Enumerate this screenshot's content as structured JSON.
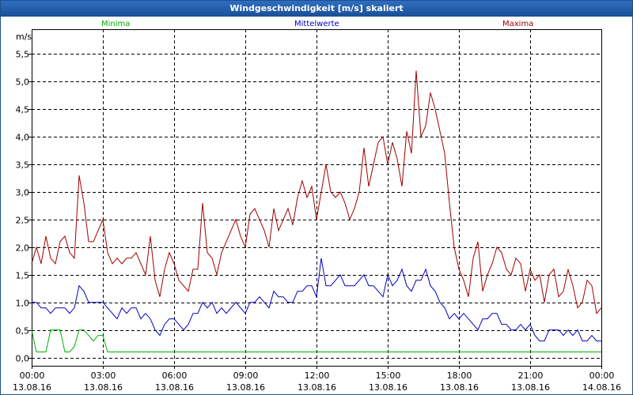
{
  "window": {
    "title": "Windgeschwindigkeit [m/s] skaliert"
  },
  "colors": {
    "min": "#00b000",
    "avg": "#0000c0",
    "max": "#a00000",
    "titlebar": "#2a66b4"
  },
  "chart_data": {
    "type": "line",
    "title": "Windgeschwindigkeit [m/s] skaliert",
    "xlabel": "",
    "ylabel": "m/s",
    "ylim": [
      -0.15,
      5.95
    ],
    "yticks": [
      0.0,
      0.5,
      1.0,
      1.5,
      2.0,
      2.5,
      3.0,
      3.5,
      4.0,
      4.5,
      5.0,
      5.5
    ],
    "ytick_labels": [
      "0,0",
      "0,5",
      "1,0",
      "1,5",
      "2,0",
      "2,5",
      "3,0",
      "3,5",
      "4,0",
      "4,5",
      "5,0",
      "5,5"
    ],
    "xlim": [
      0,
      24
    ],
    "xticks": [
      0,
      3,
      6,
      9,
      12,
      15,
      18,
      21,
      24
    ],
    "xtick_time_labels": [
      "00:00",
      "03:00",
      "06:00",
      "09:00",
      "12:00",
      "15:00",
      "18:00",
      "21:00",
      "00:00"
    ],
    "xtick_date_labels": [
      "13.08.16",
      "13.08.16",
      "13.08.16",
      "13.08.16",
      "13.08.16",
      "13.08.16",
      "13.08.16",
      "13.08.16",
      "14.08.16"
    ],
    "grid": true,
    "legend": "top",
    "x_hours": [
      0,
      0.2,
      0.4,
      0.6,
      0.8,
      1.0,
      1.2,
      1.4,
      1.6,
      1.8,
      2.0,
      2.2,
      2.4,
      2.6,
      2.8,
      3.0,
      3.2,
      3.4,
      3.6,
      3.8,
      4.0,
      4.2,
      4.4,
      4.6,
      4.8,
      5.0,
      5.2,
      5.4,
      5.6,
      5.8,
      6.0,
      6.2,
      6.4,
      6.6,
      6.8,
      7.0,
      7.2,
      7.4,
      7.6,
      7.8,
      8.0,
      8.2,
      8.4,
      8.6,
      8.8,
      9.0,
      9.2,
      9.4,
      9.6,
      9.8,
      10.0,
      10.2,
      10.4,
      10.6,
      10.8,
      11.0,
      11.2,
      11.4,
      11.6,
      11.8,
      12.0,
      12.2,
      12.4,
      12.6,
      12.8,
      13.0,
      13.2,
      13.4,
      13.6,
      13.8,
      14.0,
      14.2,
      14.4,
      14.6,
      14.8,
      15.0,
      15.2,
      15.4,
      15.6,
      15.8,
      16.0,
      16.2,
      16.4,
      16.6,
      16.8,
      17.0,
      17.2,
      17.4,
      17.6,
      17.8,
      18.0,
      18.2,
      18.4,
      18.6,
      18.8,
      19.0,
      19.2,
      19.4,
      19.6,
      19.8,
      20.0,
      20.2,
      20.4,
      20.6,
      20.8,
      21.0,
      21.2,
      21.4,
      21.6,
      21.8,
      22.0,
      22.2,
      22.4,
      22.6,
      22.8,
      23.0,
      23.2,
      23.4,
      23.6,
      23.8,
      24.0
    ],
    "series": [
      {
        "name": "Maxima",
        "color": "#a00000",
        "values": [
          1.7,
          2.0,
          1.7,
          2.2,
          1.8,
          1.7,
          2.1,
          2.2,
          1.9,
          1.8,
          3.3,
          2.8,
          2.1,
          2.1,
          2.3,
          2.5,
          1.9,
          1.7,
          1.8,
          1.7,
          1.8,
          1.8,
          1.9,
          1.7,
          1.5,
          2.2,
          1.4,
          1.1,
          1.6,
          1.9,
          1.7,
          1.4,
          1.3,
          1.2,
          1.6,
          1.6,
          2.8,
          1.9,
          1.8,
          1.5,
          1.9,
          2.1,
          2.3,
          2.5,
          2.2,
          2.0,
          2.6,
          2.7,
          2.5,
          2.3,
          2.0,
          2.7,
          2.3,
          2.5,
          2.7,
          2.4,
          2.9,
          3.2,
          2.9,
          3.1,
          2.5,
          3.0,
          3.5,
          3.0,
          2.9,
          3.0,
          2.8,
          2.5,
          2.7,
          3.0,
          3.8,
          3.1,
          3.5,
          3.9,
          4.0,
          3.5,
          3.9,
          3.6,
          3.1,
          4.1,
          3.7,
          5.2,
          4.0,
          4.2,
          4.8,
          4.5,
          4.1,
          3.7,
          2.8,
          2.0,
          1.6,
          1.4,
          1.1,
          1.8,
          2.1,
          1.2,
          1.5,
          1.7,
          2.0,
          1.9,
          1.6,
          1.5,
          1.8,
          1.7,
          1.2,
          1.6,
          1.4,
          1.5,
          1.0,
          1.5,
          1.6,
          1.1,
          1.2,
          1.6,
          1.3,
          0.9,
          1.0,
          1.4,
          1.3,
          0.8,
          0.9
        ]
      },
      {
        "name": "Mittelwerte",
        "color": "#0000c0",
        "values": [
          1.0,
          1.0,
          0.9,
          0.9,
          0.8,
          0.9,
          0.9,
          0.9,
          0.8,
          0.9,
          1.3,
          1.2,
          1.0,
          1.0,
          1.0,
          1.0,
          0.9,
          0.8,
          0.7,
          0.9,
          0.8,
          0.9,
          0.9,
          0.7,
          0.8,
          0.7,
          0.5,
          0.4,
          0.6,
          0.7,
          0.7,
          0.6,
          0.5,
          0.6,
          0.8,
          0.8,
          1.0,
          0.9,
          1.0,
          0.8,
          0.9,
          0.8,
          0.9,
          1.0,
          0.9,
          0.8,
          1.0,
          1.0,
          1.1,
          1.0,
          0.9,
          1.2,
          1.1,
          1.1,
          1.0,
          1.0,
          1.2,
          1.2,
          1.3,
          1.3,
          1.1,
          1.8,
          1.3,
          1.3,
          1.4,
          1.5,
          1.3,
          1.3,
          1.3,
          1.4,
          1.5,
          1.3,
          1.3,
          1.2,
          1.1,
          1.5,
          1.3,
          1.4,
          1.6,
          1.3,
          1.2,
          1.4,
          1.4,
          1.6,
          1.3,
          1.2,
          1.0,
          0.9,
          0.7,
          0.8,
          0.7,
          0.8,
          0.7,
          0.6,
          0.5,
          0.7,
          0.7,
          0.8,
          0.8,
          0.6,
          0.6,
          0.5,
          0.5,
          0.6,
          0.5,
          0.6,
          0.4,
          0.3,
          0.3,
          0.5,
          0.5,
          0.5,
          0.4,
          0.5,
          0.4,
          0.5,
          0.3,
          0.3,
          0.4,
          0.3,
          0.3
        ]
      },
      {
        "name": "Minima",
        "color": "#00b000",
        "values": [
          0.5,
          0.1,
          0.1,
          0.1,
          0.5,
          0.5,
          0.5,
          0.1,
          0.1,
          0.2,
          0.5,
          0.5,
          0.4,
          0.3,
          0.4,
          0.4,
          0.1,
          0.1,
          0.1,
          0.1,
          0.1,
          0.1,
          0.1,
          0.1,
          0.1,
          0.1,
          0.1,
          0.1,
          0.1,
          0.1,
          0.1,
          0.1,
          0.1,
          0.1,
          0.1,
          0.1,
          0.1,
          0.1,
          0.1,
          0.1,
          0.1,
          0.1,
          0.1,
          0.1,
          0.1,
          0.1,
          0.1,
          0.1,
          0.1,
          0.1,
          0.1,
          0.1,
          0.1,
          0.1,
          0.1,
          0.1,
          0.1,
          0.1,
          0.1,
          0.1,
          0.1,
          0.1,
          0.1,
          0.1,
          0.1,
          0.1,
          0.1,
          0.1,
          0.1,
          0.1,
          0.1,
          0.1,
          0.1,
          0.1,
          0.1,
          0.1,
          0.1,
          0.1,
          0.1,
          0.1,
          0.1,
          0.1,
          0.1,
          0.1,
          0.1,
          0.1,
          0.1,
          0.1,
          0.1,
          0.1,
          0.1,
          0.1,
          0.1,
          0.1,
          0.1,
          0.1,
          0.1,
          0.1,
          0.1,
          0.1,
          0.1,
          0.1,
          0.1,
          0.1,
          0.1,
          0.1,
          0.1,
          0.1,
          0.1,
          0.1,
          0.1,
          0.1,
          0.1,
          0.1,
          0.1,
          0.1,
          0.1,
          0.1,
          0.1,
          0.1,
          0.1
        ]
      }
    ]
  }
}
